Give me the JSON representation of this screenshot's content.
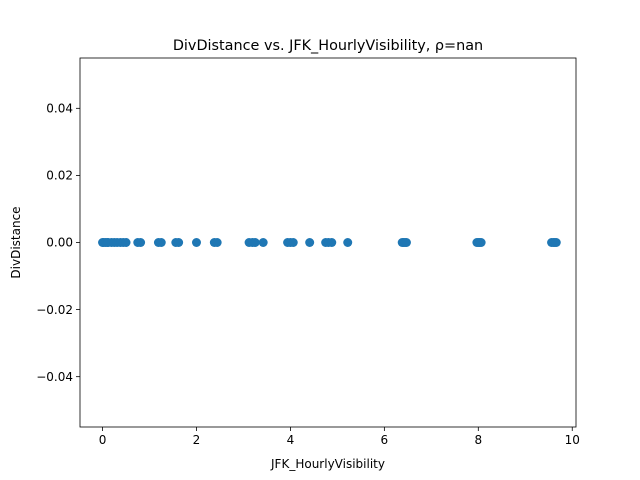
{
  "chart_data": {
    "type": "scatter",
    "title": "DivDistance vs. JFK_HourlyVisibility, ρ=nan",
    "xlabel": "JFK_HourlyVisibility",
    "ylabel": "DivDistance",
    "xlim": [
      -0.48,
      10.08
    ],
    "ylim": [
      -0.055,
      0.055
    ],
    "xticks": [
      0,
      2,
      4,
      6,
      8,
      10
    ],
    "xtick_labels": [
      "0",
      "2",
      "4",
      "6",
      "8",
      "10"
    ],
    "yticks": [
      -0.04,
      -0.02,
      0.0,
      0.02,
      0.04
    ],
    "ytick_labels": [
      "−0.04",
      "−0.02",
      "0.00",
      "0.02",
      "0.04"
    ],
    "grid": false,
    "marker_color": "#1f77b4",
    "series": [
      {
        "x": [
          0.0,
          0.02,
          0.06,
          0.1,
          0.12,
          0.19,
          0.25,
          0.31,
          0.38,
          0.44,
          0.5,
          0.75,
          0.81,
          1.19,
          1.25,
          1.56,
          1.62,
          2.0,
          2.38,
          2.44,
          3.12,
          3.19,
          3.25,
          3.42,
          3.94,
          4.0,
          4.06,
          4.41,
          4.75,
          4.81,
          4.88,
          5.22,
          6.38,
          6.41,
          6.44,
          6.47,
          7.97,
          8.0,
          8.03,
          8.06,
          9.56,
          9.6,
          9.63,
          9.66
        ],
        "y": [
          0,
          0,
          0,
          0,
          0,
          0,
          0,
          0,
          0,
          0,
          0,
          0,
          0,
          0,
          0,
          0,
          0,
          0,
          0,
          0,
          0,
          0,
          0,
          0,
          0,
          0,
          0,
          0,
          0,
          0,
          0,
          0,
          0,
          0,
          0,
          0,
          0,
          0,
          0,
          0,
          0,
          0,
          0,
          0
        ]
      }
    ]
  }
}
